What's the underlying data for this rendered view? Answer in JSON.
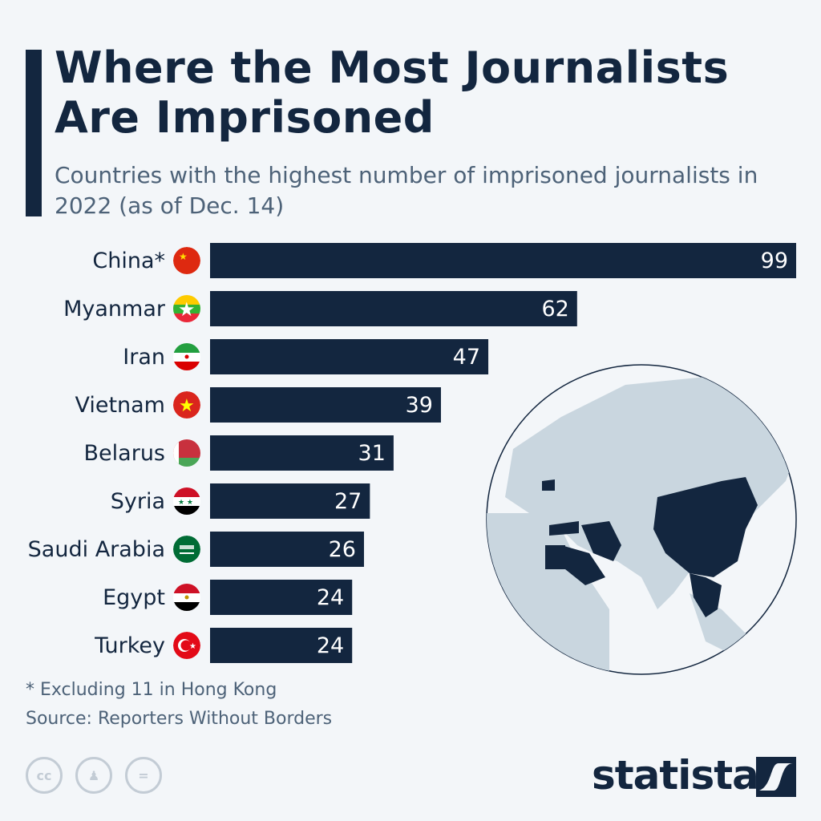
{
  "header": {
    "title_line1": "Where the Most Journalists",
    "title_line2": "Are Imprisoned",
    "subtitle": "Countries with the highest number of imprisoned journalists in 2022 (as of Dec. 14)"
  },
  "chart_data": {
    "type": "bar",
    "orientation": "horizontal",
    "categories": [
      "China*",
      "Myanmar",
      "Iran",
      "Vietnam",
      "Belarus",
      "Syria",
      "Saudi Arabia",
      "Egypt",
      "Turkey"
    ],
    "values": [
      99,
      62,
      47,
      39,
      31,
      27,
      26,
      24,
      24
    ],
    "title": "Where the Most Journalists Are Imprisoned",
    "xlabel": "",
    "ylabel": "",
    "bar_color": "#13263f",
    "data_labels": true,
    "grid": false
  },
  "flags": [
    "china-flag",
    "myanmar-flag",
    "iran-flag",
    "vietnam-flag",
    "belarus-flag",
    "syria-flag",
    "saudi-arabia-flag",
    "egypt-flag",
    "turkey-flag"
  ],
  "footer": {
    "note": "* Excluding 11 in Hong Kong",
    "source": "Source: Reporters Without Borders",
    "brand": "statista",
    "cc": "cc",
    "equals": "="
  },
  "colors": {
    "dark": "#13263f",
    "background": "#f3f6f9",
    "map_land": "#c9d6df",
    "subtitle": "#4d6278"
  }
}
